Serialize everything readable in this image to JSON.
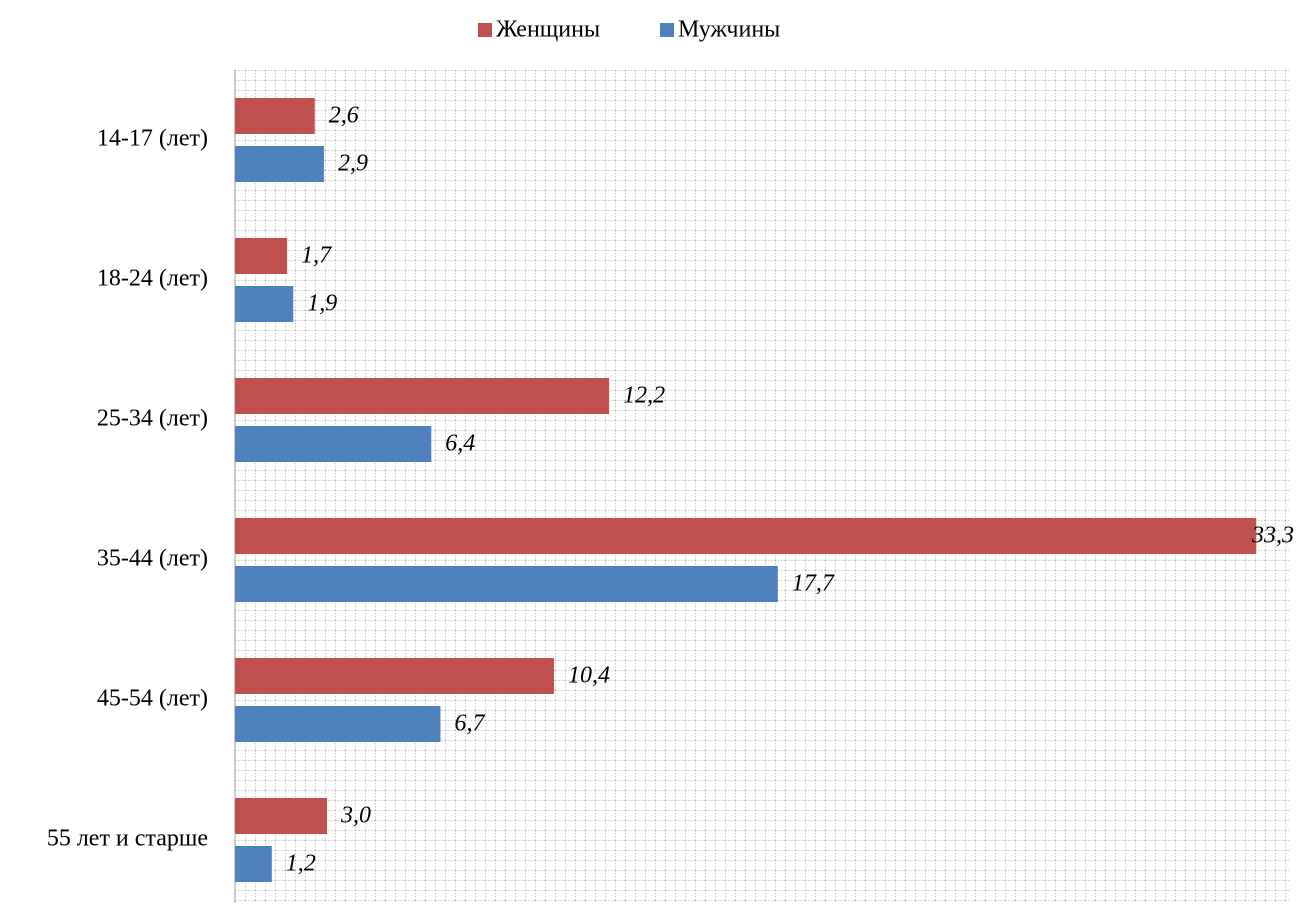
{
  "chart_data": {
    "type": "bar",
    "orientation": "horizontal",
    "categories": [
      "14-17 (лет)",
      "18-24 (лет)",
      "25-34 (лет)",
      "35-44 (лет)",
      "45-54 (лет)",
      "55 лет и старше"
    ],
    "series": [
      {
        "name": "Женщины",
        "color": "#c0504d",
        "values": [
          2.6,
          1.7,
          12.2,
          33.3,
          10.4,
          3.0
        ],
        "value_labels": [
          "2,6",
          "1,7",
          "12,2",
          "33,3",
          "10,4",
          "3,0"
        ]
      },
      {
        "name": "Мужчины",
        "color": "#4f81bd",
        "values": [
          2.9,
          1.9,
          6.4,
          17.7,
          6.7,
          1.2
        ],
        "value_labels": [
          "2,9",
          "1,9",
          "6,4",
          "17,7",
          "6,7",
          "1,2"
        ]
      }
    ],
    "xlim": [
      0,
      34.4
    ],
    "legend": "top"
  }
}
